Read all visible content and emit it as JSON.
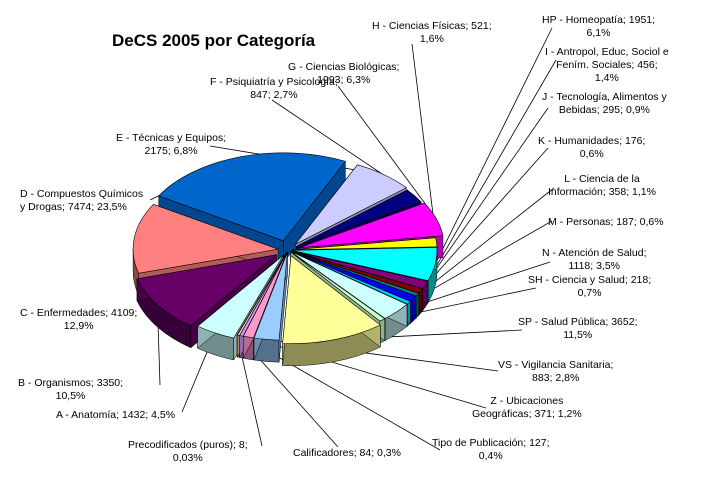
{
  "chart_data": {
    "type": "pie",
    "title": "DeCS 2005 por Categoría",
    "slices": [
      {
        "id": "a",
        "label": "A - Anatomía; 1432; 4,5%",
        "value": 1432,
        "percent": 4.5,
        "color": "#ccffff"
      },
      {
        "id": "b",
        "label": "B - Organismos; 3350; 10,5%",
        "value": 3350,
        "percent": 10.5,
        "color": "#660066"
      },
      {
        "id": "c",
        "label": "C - Enfermedades; 4109; 12,9%",
        "value": 4109,
        "percent": 12.9,
        "color": "#ff8080"
      },
      {
        "id": "d",
        "label": "D - Compuestos Químicos y Drogas; 7474; 23,5%",
        "value": 7474,
        "percent": 23.5,
        "color": "#0066cc"
      },
      {
        "id": "e",
        "label": "E - Técnicas y Equipos; 2175; 6,8%",
        "value": 2175,
        "percent": 6.8,
        "color": "#ccccff"
      },
      {
        "id": "f",
        "label": "F - Psiquiatría y Psicología; 847; 2,7%",
        "value": 847,
        "percent": 2.7,
        "color": "#000080"
      },
      {
        "id": "g",
        "label": "G - Ciencias Biológicas; 1993; 6,3%",
        "value": 1993,
        "percent": 6.3,
        "color": "#ff00ff"
      },
      {
        "id": "h",
        "label": "H - Ciencias Físicas; 521; 1,6%",
        "value": 521,
        "percent": 1.6,
        "color": "#ffff00"
      },
      {
        "id": "hp",
        "label": "HP - Homeopatía; 1951; 6,1%",
        "value": 1951,
        "percent": 6.1,
        "color": "#00ffff"
      },
      {
        "id": "i",
        "label": "I - Antropol, Educ, Sociol e Fením. Sociales; 456; 1,4%",
        "value": 456,
        "percent": 1.4,
        "color": "#800080"
      },
      {
        "id": "j",
        "label": "J - Tecnología, Alimentos y Bebidas; 295; 0,9%",
        "value": 295,
        "percent": 0.9,
        "color": "#800000"
      },
      {
        "id": "k",
        "label": "K - Humanidades; 176; 0,6%",
        "value": 176,
        "percent": 0.6,
        "color": "#008080"
      },
      {
        "id": "l",
        "label": "L - Ciencia de la Información; 358; 1,1%",
        "value": 358,
        "percent": 1.1,
        "color": "#0000ff"
      },
      {
        "id": "m",
        "label": "M - Personas; 187; 0,6%",
        "value": 187,
        "percent": 0.6,
        "color": "#00ccff"
      },
      {
        "id": "n",
        "label": "N - Atención de Salud; 1118; 3,5%",
        "value": 1118,
        "percent": 3.5,
        "color": "#ccffff"
      },
      {
        "id": "sh",
        "label": "SH - Ciencia y Salud; 218; 0,7%",
        "value": 218,
        "percent": 0.7,
        "color": "#ccffcc"
      },
      {
        "id": "sp",
        "label": "SP - Salud Pública; 3652; 11,5%",
        "value": 3652,
        "percent": 11.5,
        "color": "#ffff99"
      },
      {
        "id": "vs",
        "label": "VS - Vigilancia Sanitaria; 883; 2,8%",
        "value": 883,
        "percent": 2.8,
        "color": "#99ccff"
      },
      {
        "id": "z",
        "label": "Z - Ubicaciones Geográficas; 371; 1,2%",
        "value": 371,
        "percent": 1.2,
        "color": "#ff99cc"
      },
      {
        "id": "tp",
        "label": "Tipo de Publicación; 127; 0,4%",
        "value": 127,
        "percent": 0.4,
        "color": "#cc99ff"
      },
      {
        "id": "cal",
        "label": "Calificadores; 84; 0,3%",
        "value": 84,
        "percent": 0.3,
        "color": "#ffcc99"
      },
      {
        "id": "pre",
        "label": "Precodificados (puros); 8; 0,03%",
        "value": 8,
        "percent": 0.03,
        "color": "#3366ff"
      }
    ],
    "legend": "none"
  },
  "labels": {
    "title": "DeCS 2005 por Categoría",
    "h1": "H - Ciencias Físicas; 521;",
    "h2": "1,6%",
    "hp1": "HP - Homeopatía; 1951;",
    "hp2": "6,1%",
    "i1": "I - Antropol, Educ, Sociol e",
    "i2": "Fením. Sociales; 456;",
    "i3": "1,4%",
    "g1": "G - Ciencias Biológicas;",
    "g2": "1993; 6,3%",
    "f1": "F - Psiquiatría y Psicología;",
    "f2": "847; 2,7%",
    "j1": "J - Tecnología, Alimentos y",
    "j2": "Bebidas; 295; 0,9%",
    "e1": "E - Técnicas y Equipos;",
    "e2": "2175; 6,8%",
    "k1": "K - Humanidades; 176;",
    "k2": "0,6%",
    "d1": "D - Compuestos Químicos",
    "d2": "y Drogas; 7474; 23,5%",
    "l1": "L - Ciencia de la",
    "l2": "Información; 358; 1,1%",
    "m1": "M - Personas; 187; 0,6%",
    "n1": "N - Atención de Salud;",
    "n2": "1118; 3,5%",
    "sh1": "SH - Ciencia y Salud; 218;",
    "sh2": "0,7%",
    "c1": "C - Enfermedades; 4109;",
    "c2": "12,9%",
    "sp1": "SP - Salud Pública; 3652;",
    "sp2": "11,5%",
    "vs1": "VS - Vigilancia Sanitaria;",
    "vs2": "883; 2,8%",
    "b1": "B - Organismos; 3350;",
    "b2": "10,5%",
    "z1": "Z - Ubicaciones",
    "z2": "Geográficas; 371; 1,2%",
    "a1": "A - Anatomía; 1432; 4,5%",
    "pre1": "Precodificados (puros); 8;",
    "pre2": "0,03%",
    "cal1": "Calificadores; 84; 0,3%",
    "tp1": "Tipo de Publicación; 127;",
    "tp2": "0,4%"
  }
}
